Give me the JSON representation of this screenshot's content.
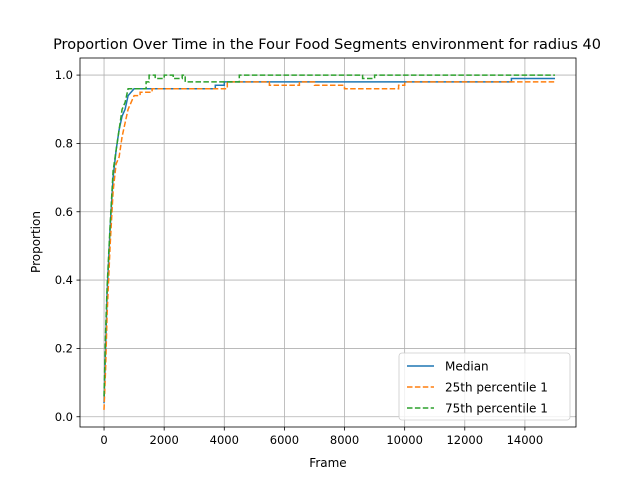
{
  "chart_data": {
    "type": "line",
    "title": "Proportion Over Time in the Four Food Segments environment for radius 40",
    "xlabel": "Frame",
    "ylabel": "Proportion",
    "xlim": [
      -800,
      15700
    ],
    "ylim": [
      -0.03,
      1.05
    ],
    "xticks": [
      0,
      2000,
      4000,
      6000,
      8000,
      10000,
      12000,
      14000
    ],
    "yticks": [
      0.0,
      0.2,
      0.4,
      0.6,
      0.8,
      1.0
    ],
    "xtick_labels": [
      "0",
      "2000",
      "4000",
      "6000",
      "8000",
      "10000",
      "12000",
      "14000"
    ],
    "ytick_labels": [
      "0.0",
      "0.2",
      "0.4",
      "0.6",
      "0.8",
      "1.0"
    ],
    "grid": true,
    "legend_position": "lower right",
    "series": [
      {
        "name": "Median",
        "color": "#1f77b4",
        "dash": "solid",
        "x": [
          0,
          50,
          100,
          200,
          300,
          400,
          500,
          600,
          700,
          800,
          1000,
          1200,
          1500,
          2000,
          3000,
          3600,
          3700,
          4000,
          4500,
          6000,
          8000,
          10000,
          12000,
          13500,
          13550,
          14000,
          14500,
          15000
        ],
        "y": [
          0.04,
          0.2,
          0.36,
          0.55,
          0.7,
          0.78,
          0.84,
          0.88,
          0.9,
          0.94,
          0.96,
          0.96,
          0.96,
          0.96,
          0.96,
          0.96,
          0.97,
          0.98,
          0.98,
          0.98,
          0.98,
          0.98,
          0.98,
          0.98,
          0.99,
          0.99,
          0.99,
          0.99
        ]
      },
      {
        "name": "25th percentile 1",
        "color": "#ff7f0e",
        "dash": "dashed",
        "x": [
          0,
          50,
          100,
          200,
          300,
          400,
          500,
          600,
          700,
          800,
          1000,
          1200,
          1500,
          1600,
          2000,
          3000,
          4000,
          4100,
          4500,
          5500,
          6000,
          6500,
          7000,
          7500,
          8000,
          8500,
          9000,
          9500,
          9800,
          10000,
          12000,
          14000,
          15000
        ],
        "y": [
          0.02,
          0.14,
          0.3,
          0.5,
          0.66,
          0.74,
          0.76,
          0.82,
          0.86,
          0.9,
          0.94,
          0.95,
          0.95,
          0.96,
          0.96,
          0.96,
          0.96,
          0.98,
          0.98,
          0.97,
          0.97,
          0.98,
          0.97,
          0.97,
          0.96,
          0.96,
          0.96,
          0.96,
          0.97,
          0.98,
          0.98,
          0.98,
          0.98
        ]
      },
      {
        "name": "75th percentile 1",
        "color": "#2ca02c",
        "dash": "dashed",
        "x": [
          0,
          50,
          100,
          200,
          300,
          400,
          500,
          600,
          700,
          800,
          1000,
          1200,
          1400,
          1500,
          1700,
          2000,
          2300,
          2600,
          2700,
          3000,
          4000,
          4500,
          5000,
          6000,
          7000,
          8000,
          8500,
          8600,
          9000,
          10000,
          12000,
          14000,
          15000
        ],
        "y": [
          0.06,
          0.25,
          0.38,
          0.56,
          0.72,
          0.78,
          0.84,
          0.9,
          0.92,
          0.96,
          0.96,
          0.96,
          0.98,
          1.0,
          0.99,
          1.0,
          0.99,
          1.0,
          0.98,
          0.98,
          0.98,
          1.0,
          1.0,
          1.0,
          1.0,
          1.0,
          1.0,
          0.99,
          1.0,
          1.0,
          1.0,
          1.0,
          1.0
        ]
      }
    ]
  }
}
